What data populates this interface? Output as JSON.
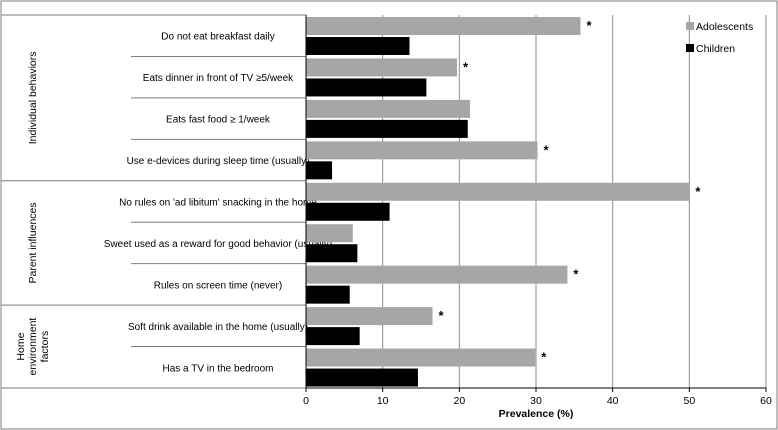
{
  "chart_data": {
    "type": "bar",
    "orientation": "horizontal",
    "xlabel": "Prevalence (%)",
    "xlim": [
      0,
      60
    ],
    "xticks": [
      0,
      10,
      20,
      30,
      40,
      50,
      60
    ],
    "grid": true,
    "legend_position": "top-right",
    "groups": [
      {
        "label": "Individual behaviors",
        "categories": [
          0,
          1,
          2,
          3
        ]
      },
      {
        "label": "Parent influences",
        "categories": [
          4,
          5,
          6
        ]
      },
      {
        "label": "Home environment factors",
        "categories": [
          7,
          8
        ]
      }
    ],
    "categories": [
      "Do not eat breakfast daily",
      "Eats dinner in front of TV ≥5/week",
      "Eats fast food ≥ 1/week",
      "Use e-devices during sleep time (usually)",
      "No rules on 'ad libitum' snacking in the home",
      "Sweet used as a reward for good behavior (usually)",
      "Rules on screen time (never)",
      "Soft drink available in the home (usually)",
      "Has a TV in the bedroom"
    ],
    "series": [
      {
        "name": "Adolescents",
        "color": "#a6a6a6",
        "values": [
          35.8,
          19.7,
          21.4,
          30.2,
          50.0,
          6.1,
          34.1,
          16.5,
          29.9
        ],
        "significant": [
          true,
          true,
          false,
          true,
          true,
          false,
          true,
          true,
          true
        ]
      },
      {
        "name": "Children",
        "color": "#000000",
        "values": [
          13.5,
          15.7,
          21.1,
          3.4,
          10.9,
          6.7,
          5.7,
          7.0,
          14.6
        ]
      }
    ],
    "significance_marker": "*"
  }
}
